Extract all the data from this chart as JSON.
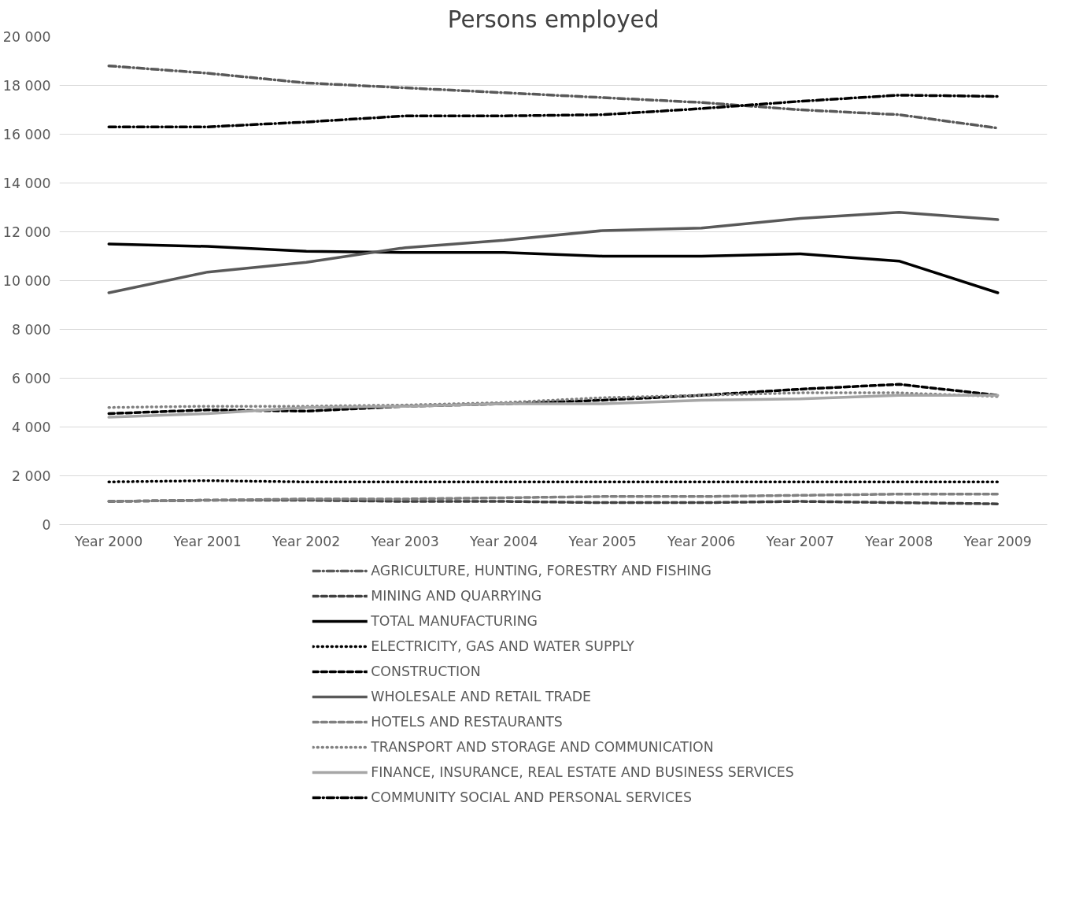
{
  "chart_data": {
    "type": "line",
    "title": "Persons employed",
    "categories": [
      "Year 2000",
      "Year 2001",
      "Year 2002",
      "Year 2003",
      "Year 2004",
      "Year 2005",
      "Year 2006",
      "Year 2007",
      "Year 2008",
      "Year 2009"
    ],
    "ylim": [
      0,
      20000
    ],
    "yticks": [
      {
        "value": 0,
        "label": "0"
      },
      {
        "value": 2000,
        "label": "2 000"
      },
      {
        "value": 4000,
        "label": "4 000"
      },
      {
        "value": 6000,
        "label": "6 000"
      },
      {
        "value": 8000,
        "label": "8 000"
      },
      {
        "value": 10000,
        "label": "10 000"
      },
      {
        "value": 12000,
        "label": "12 000"
      },
      {
        "value": 14000,
        "label": "14 000"
      },
      {
        "value": 16000,
        "label": "16 000"
      },
      {
        "value": 18000,
        "label": "18 000"
      },
      {
        "value": 20000,
        "label": "20 000"
      }
    ],
    "grid": "y",
    "legend": "bottom",
    "series": [
      {
        "name": "AGRICULTURE, HUNTING, FORESTRY AND FISHING",
        "color": "#595959",
        "line_style": "dashdot",
        "values": [
          18800,
          18500,
          18100,
          17900,
          17700,
          17500,
          17300,
          17000,
          16800,
          16250
        ]
      },
      {
        "name": "MINING AND QUARRYING",
        "color": "#404040",
        "line_style": "dashed",
        "values": [
          950,
          1000,
          1000,
          950,
          950,
          900,
          900,
          950,
          900,
          850
        ]
      },
      {
        "name": "TOTAL MANUFACTURING",
        "color": "#000000",
        "line_style": "solid",
        "values": [
          11500,
          11400,
          11200,
          11150,
          11150,
          11000,
          11000,
          11100,
          10800,
          9500
        ]
      },
      {
        "name": "ELECTRICITY, GAS AND WATER SUPPLY",
        "color": "#000000",
        "line_style": "dotted",
        "values": [
          1750,
          1800,
          1750,
          1750,
          1750,
          1750,
          1750,
          1750,
          1750,
          1750
        ]
      },
      {
        "name": "CONSTRUCTION",
        "color": "#000000",
        "line_style": "dashed",
        "values": [
          4550,
          4700,
          4650,
          4850,
          4950,
          5100,
          5300,
          5550,
          5750,
          5300
        ]
      },
      {
        "name": "WHOLESALE AND RETAIL TRADE",
        "color": "#595959",
        "line_style": "solid",
        "values": [
          9500,
          10350,
          10750,
          11350,
          11650,
          12050,
          12150,
          12550,
          12800,
          12500
        ]
      },
      {
        "name": "HOTELS AND RESTAURANTS",
        "color": "#808080",
        "line_style": "dashed",
        "values": [
          950,
          1000,
          1050,
          1050,
          1100,
          1150,
          1150,
          1200,
          1250,
          1250
        ]
      },
      {
        "name": "TRANSPORT AND STORAGE AND COMMUNICATION",
        "color": "#808080",
        "line_style": "dotted",
        "values": [
          4800,
          4850,
          4850,
          4900,
          5000,
          5200,
          5300,
          5400,
          5400,
          5250
        ]
      },
      {
        "name": "FINANCE, INSURANCE, REAL ESTATE AND BUSINESS SERVICES",
        "color": "#a6a6a6",
        "line_style": "solid",
        "values": [
          4400,
          4550,
          4800,
          4850,
          4950,
          4950,
          5100,
          5150,
          5300,
          5300
        ]
      },
      {
        "name": "COMMUNITY SOCIAL AND PERSONAL SERVICES",
        "color": "#000000",
        "line_style": "dashdot",
        "values": [
          16300,
          16300,
          16500,
          16750,
          16750,
          16800,
          17050,
          17350,
          17600,
          17550
        ]
      }
    ]
  }
}
